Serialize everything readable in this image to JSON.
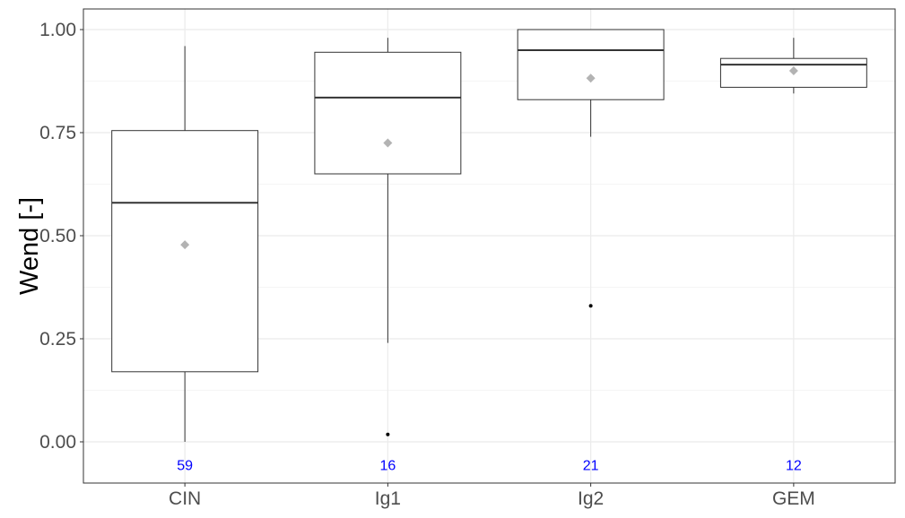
{
  "chart_data": {
    "type": "boxplot",
    "ylabel": "Wend [-]",
    "xlabel": "",
    "title": "",
    "ylim": [
      -0.1,
      1.05
    ],
    "yticks": [
      0.0,
      0.25,
      0.5,
      0.75,
      1.0
    ],
    "ytick_labels": [
      "0.00",
      "0.25",
      "0.50",
      "0.75",
      "1.00"
    ],
    "grid": true,
    "categories": [
      "CIN",
      "Ig1",
      "Ig2",
      "GEM"
    ],
    "boxes": [
      {
        "category": "CIN",
        "whisker_low": 0.0,
        "q1": 0.17,
        "median": 0.58,
        "q3": 0.755,
        "whisker_high": 0.96,
        "mean": 0.478,
        "outliers": [],
        "n": "59"
      },
      {
        "category": "Ig1",
        "whisker_low": 0.24,
        "q1": 0.65,
        "median": 0.835,
        "q3": 0.945,
        "whisker_high": 0.98,
        "mean": 0.725,
        "outliers": [
          0.018
        ],
        "n": "16"
      },
      {
        "category": "Ig2",
        "whisker_low": 0.74,
        "q1": 0.83,
        "median": 0.95,
        "q3": 1.0,
        "whisker_high": 1.0,
        "mean": 0.882,
        "outliers": [
          0.33
        ],
        "n": "21"
      },
      {
        "category": "GEM",
        "whisker_low": 0.845,
        "q1": 0.86,
        "median": 0.915,
        "q3": 0.93,
        "whisker_high": 0.98,
        "mean": 0.9,
        "outliers": [],
        "n": "12"
      }
    ],
    "count_label_y": -0.055,
    "colors": {
      "box_stroke": "#333333",
      "mean_marker": "#b3b3b3",
      "outlier": "#000000",
      "count_text": "#0000ff",
      "grid_major": "#ebebeb",
      "grid_minor": "#f5f5f5",
      "panel_border": "#333333"
    }
  }
}
